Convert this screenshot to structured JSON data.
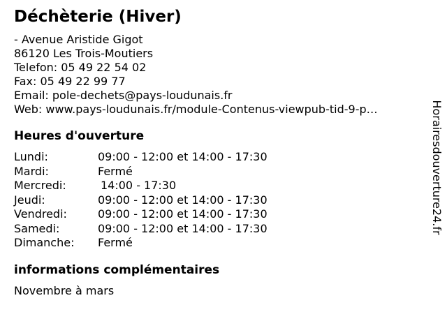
{
  "colors": {
    "text": "#000000",
    "background": "#ffffff"
  },
  "page": {
    "title": "Déchèterie (Hiver)",
    "contact": {
      "street": "- Avenue Aristide Gigot",
      "city": "86120 Les Trois-Moutiers",
      "phone_label": "Telefon:",
      "phone": "05 49 22 54 02",
      "fax_label": "Fax:",
      "fax": "05 49 22 99 77",
      "email_label": "Email:",
      "email": "pole-dechets@pays-loudunais.fr",
      "web_label": "Web:",
      "web": "www.pays-loudunais.fr/module-Contenus-viewpub-tid-9-p…"
    },
    "hours": {
      "heading": "Heures d'ouverture",
      "rows": [
        {
          "day": "Lundi:",
          "hours": "09:00 - 12:00 et 14:00 - 17:30"
        },
        {
          "day": "Mardi:",
          "hours": "Fermé"
        },
        {
          "day": "Mercredi:",
          "hours": "14:00 - 17:30"
        },
        {
          "day": "Jeudi:",
          "hours": "09:00 - 12:00 et 14:00 - 17:30"
        },
        {
          "day": "Vendredi:",
          "hours": "09:00 - 12:00 et 14:00 - 17:30"
        },
        {
          "day": "Samedi:",
          "hours": "09:00 - 12:00 et 14:00 - 17:30"
        },
        {
          "day": "Dimanche:",
          "hours": "Fermé"
        }
      ]
    },
    "extra": {
      "heading": "informations complémentaires",
      "text": "Novembre à mars"
    },
    "watermark": "Horairesdouverture24.fr"
  }
}
